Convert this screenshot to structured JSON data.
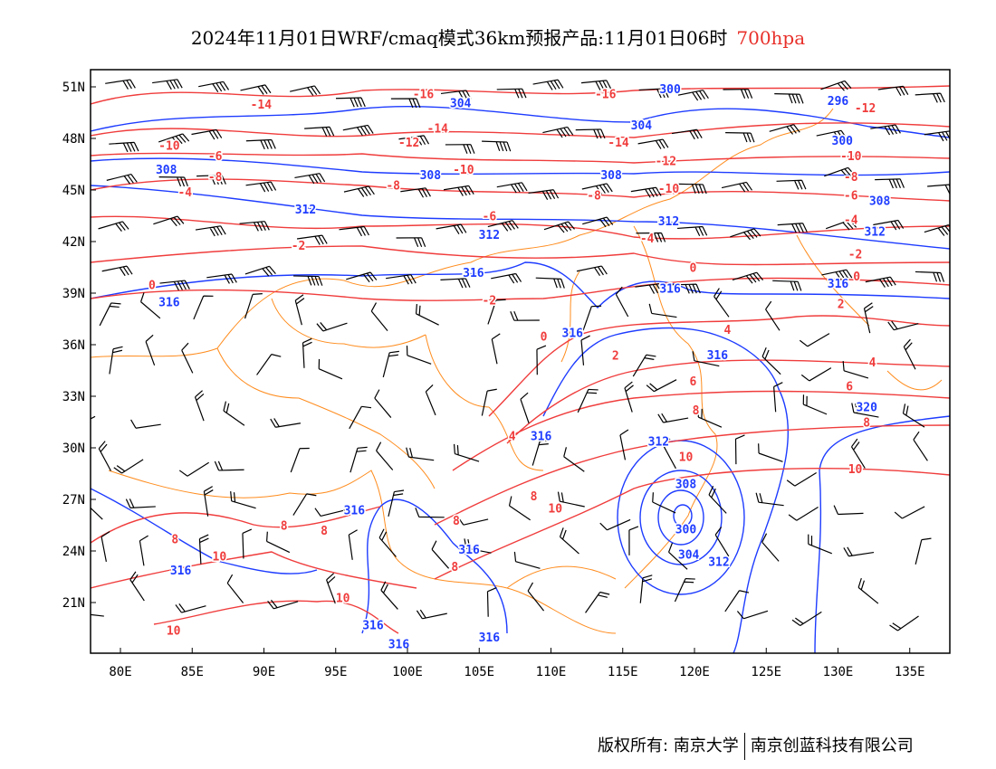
{
  "title": {
    "main": "2024年11月01日WRF/cmaq模式36km预报产品:11月01日06时",
    "level": "700hpa"
  },
  "footer": {
    "owner": "版权所有: 南京大学",
    "company": "南京创蓝科技有限公司"
  },
  "colors": {
    "temperature": "#f03c3c",
    "height": "#1e3cff",
    "boundary": "#ff8c1e",
    "wind": "#000000",
    "level_text": "#e8302a"
  },
  "axes": {
    "lon_labels": [
      {
        "lon": 80,
        "text": "80E"
      },
      {
        "lon": 85,
        "text": "85E"
      },
      {
        "lon": 90,
        "text": "90E"
      },
      {
        "lon": 95,
        "text": "95E"
      },
      {
        "lon": 100,
        "text": "100E"
      },
      {
        "lon": 105,
        "text": "105E"
      },
      {
        "lon": 110,
        "text": "110E"
      },
      {
        "lon": 115,
        "text": "115E"
      },
      {
        "lon": 120,
        "text": "120E"
      },
      {
        "lon": 125,
        "text": "125E"
      },
      {
        "lon": 130,
        "text": "130E"
      },
      {
        "lon": 135,
        "text": "135E"
      }
    ],
    "lat_labels": [
      {
        "lat": 51,
        "text": "51N"
      },
      {
        "lat": 48,
        "text": "48N"
      },
      {
        "lat": 45,
        "text": "45N"
      },
      {
        "lat": 42,
        "text": "42N"
      },
      {
        "lat": 39,
        "text": "39N"
      },
      {
        "lat": 36,
        "text": "36N"
      },
      {
        "lat": 33,
        "text": "33N"
      },
      {
        "lat": 30,
        "text": "30N"
      },
      {
        "lat": 27,
        "text": "27N"
      },
      {
        "lat": 24,
        "text": "24N"
      },
      {
        "lat": 21,
        "text": "21N"
      }
    ]
  },
  "temperature_labels": [
    {
      "t": "-16",
      "lon": 101.1,
      "lat": 50.6
    },
    {
      "t": "-14",
      "lon": 89.8,
      "lat": 50.0
    },
    {
      "t": "-16",
      "lon": 113.8,
      "lat": 50.6
    },
    {
      "t": "-12",
      "lon": 131.9,
      "lat": 49.8
    },
    {
      "t": "-14",
      "lon": 102.1,
      "lat": 48.6
    },
    {
      "t": "-14",
      "lon": 114.7,
      "lat": 47.8
    },
    {
      "t": "-10",
      "lon": 83.4,
      "lat": 47.6
    },
    {
      "t": "-6",
      "lon": 86.6,
      "lat": 47.0
    },
    {
      "t": "-12",
      "lon": 100.1,
      "lat": 47.8
    },
    {
      "t": "-12",
      "lon": 118.0,
      "lat": 46.7
    },
    {
      "t": "-10",
      "lon": 130.9,
      "lat": 47.0
    },
    {
      "t": "-10",
      "lon": 103.9,
      "lat": 46.2
    },
    {
      "t": "-10",
      "lon": 118.2,
      "lat": 45.9
    },
    {
      "t": "-8",
      "lon": 86.6,
      "lat": 45.8
    },
    {
      "t": "-8",
      "lon": 99.0,
      "lat": 45.3
    },
    {
      "t": "-8",
      "lon": 130.9,
      "lat": 45.8
    },
    {
      "t": "-8",
      "lon": 113.0,
      "lat": 44.7
    },
    {
      "t": "-6",
      "lon": 130.9,
      "lat": 44.7
    },
    {
      "t": "-4",
      "lon": 84.5,
      "lat": 44.9
    },
    {
      "t": "-6",
      "lon": 105.7,
      "lat": 43.5
    },
    {
      "t": "-4",
      "lon": 130.9,
      "lat": 43.3
    },
    {
      "t": "-4",
      "lon": 116.7,
      "lat": 42.2
    },
    {
      "t": "-2",
      "lon": 92.4,
      "lat": 41.8
    },
    {
      "t": "-2",
      "lon": 131.2,
      "lat": 41.3
    },
    {
      "t": "0",
      "lon": 119.9,
      "lat": 40.5
    },
    {
      "t": "0",
      "lon": 82.2,
      "lat": 39.5
    },
    {
      "t": "0",
      "lon": 131.3,
      "lat": 40.0
    },
    {
      "t": "-2",
      "lon": 105.7,
      "lat": 38.6
    },
    {
      "t": "2",
      "lon": 130.2,
      "lat": 38.4
    },
    {
      "t": "0",
      "lon": 109.5,
      "lat": 36.5
    },
    {
      "t": "4",
      "lon": 122.3,
      "lat": 36.9
    },
    {
      "t": "2",
      "lon": 114.5,
      "lat": 35.4
    },
    {
      "t": "4",
      "lon": 132.4,
      "lat": 35.0
    },
    {
      "t": "6",
      "lon": 119.9,
      "lat": 33.9
    },
    {
      "t": "6",
      "lon": 130.8,
      "lat": 33.6
    },
    {
      "t": "8",
      "lon": 120.1,
      "lat": 32.2
    },
    {
      "t": "4",
      "lon": 107.3,
      "lat": 30.7
    },
    {
      "t": "8",
      "lon": 132.0,
      "lat": 31.5
    },
    {
      "t": "10",
      "lon": 119.4,
      "lat": 29.5
    },
    {
      "t": "10",
      "lon": 131.2,
      "lat": 28.8
    },
    {
      "t": "8",
      "lon": 108.8,
      "lat": 27.2
    },
    {
      "t": "10",
      "lon": 110.3,
      "lat": 26.5
    },
    {
      "t": "8",
      "lon": 91.4,
      "lat": 25.5
    },
    {
      "t": "8",
      "lon": 94.2,
      "lat": 25.2
    },
    {
      "t": "8",
      "lon": 103.4,
      "lat": 25.8
    },
    {
      "t": "8",
      "lon": 83.8,
      "lat": 24.7
    },
    {
      "t": "10",
      "lon": 86.9,
      "lat": 23.7
    },
    {
      "t": "8",
      "lon": 103.3,
      "lat": 23.1
    },
    {
      "t": "10",
      "lon": 95.5,
      "lat": 21.3
    },
    {
      "t": "10",
      "lon": 83.7,
      "lat": 19.4
    }
  ],
  "height_labels": [
    {
      "t": "304",
      "lon": 103.7,
      "lat": 49.3
    },
    {
      "t": "304",
      "lon": 116.3,
      "lat": 48.8
    },
    {
      "t": "300",
      "lon": 118.3,
      "lat": 50.9
    },
    {
      "t": "300",
      "lon": 130.3,
      "lat": 47.9
    },
    {
      "t": "296",
      "lon": 130.0,
      "lat": 50.2
    },
    {
      "t": "308",
      "lon": 83.2,
      "lat": 47.0
    },
    {
      "t": "308",
      "lon": 101.6,
      "lat": 45.9
    },
    {
      "t": "308",
      "lon": 114.2,
      "lat": 45.9
    },
    {
      "t": "308",
      "lon": 131.9,
      "lat": 44.4
    },
    {
      "t": "312",
      "lon": 92.9,
      "lat": 43.9
    },
    {
      "t": "312",
      "lon": 105.7,
      "lat": 43.2
    },
    {
      "t": "312",
      "lon": 118.2,
      "lat": 43.2
    },
    {
      "t": "312",
      "lon": 130.8,
      "lat": 42.6
    },
    {
      "t": "316",
      "lon": 104.6,
      "lat": 40.2
    },
    {
      "t": "316",
      "lon": 83.4,
      "lat": 39.3
    },
    {
      "t": "316",
      "lon": 118.3,
      "lat": 39.3
    },
    {
      "t": "316",
      "lon": 130.0,
      "lat": 38.8
    },
    {
      "t": "316",
      "lon": 111.5,
      "lat": 36.7
    },
    {
      "t": "316",
      "lon": 121.6,
      "lat": 36.2
    },
    {
      "t": "320",
      "lon": 132.0,
      "lat": 32.4
    },
    {
      "t": "316",
      "lon": 108.3,
      "lat": 30.7
    },
    {
      "t": "312",
      "lon": 117.5,
      "lat": 30.4
    },
    {
      "t": "308",
      "lon": 119.4,
      "lat": 28.7
    },
    {
      "t": "300",
      "lon": 119.4,
      "lat": 25.3
    },
    {
      "t": "304",
      "lon": 119.6,
      "lat": 24.6
    },
    {
      "t": "312",
      "lon": 121.7,
      "lat": 23.4
    },
    {
      "t": "316",
      "lon": 96.3,
      "lat": 26.4
    },
    {
      "t": "316",
      "lon": 104.3,
      "lat": 24.1
    },
    {
      "t": "316",
      "lon": 84.2,
      "lat": 22.9
    },
    {
      "t": "316",
      "lon": 97.6,
      "lat": 19.7
    },
    {
      "t": "316",
      "lon": 99.4,
      "lat": 18.6
    },
    {
      "t": "316",
      "lon": 105.7,
      "lat": 19.0
    }
  ]
}
